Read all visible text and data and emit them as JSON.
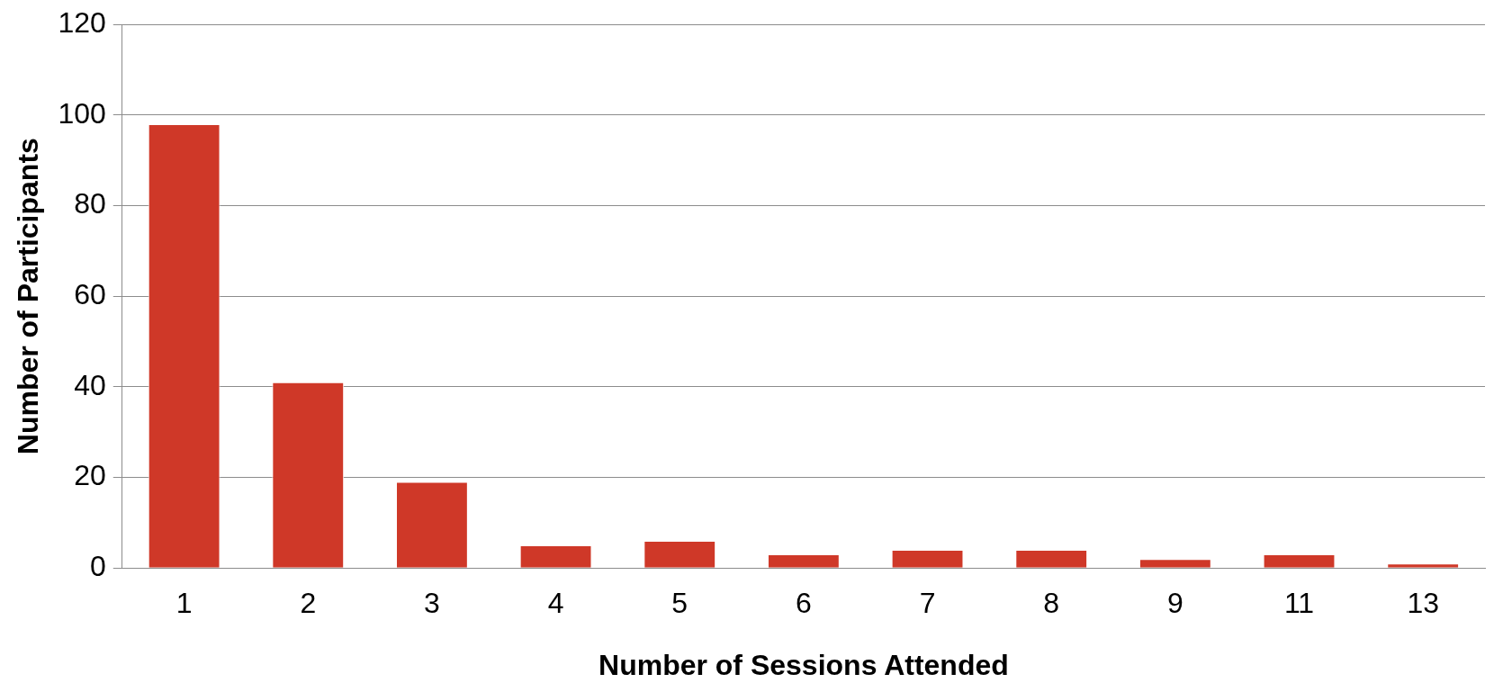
{
  "chart_data": {
    "type": "bar",
    "xlabel": "Number of Sessions Attended",
    "ylabel": "Number of Participants",
    "categories": [
      "1",
      "2",
      "3",
      "4",
      "5",
      "6",
      "7",
      "8",
      "9",
      "11",
      "13"
    ],
    "values": [
      98,
      41,
      19,
      5,
      6,
      3,
      4,
      4,
      2,
      3,
      1
    ],
    "color": "#cf3828",
    "ylim": [
      0,
      120
    ],
    "yticks": [
      0,
      20,
      40,
      60,
      80,
      100,
      120
    ],
    "grid": "y",
    "legend": false
  }
}
